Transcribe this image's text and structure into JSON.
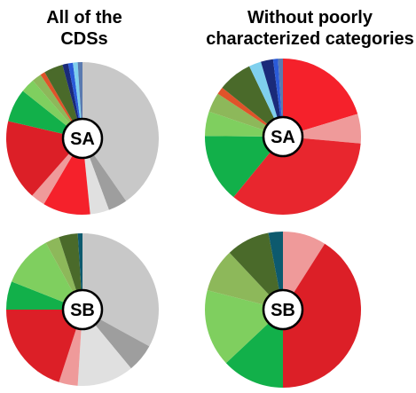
{
  "column_titles": {
    "left": {
      "line1": "All of the",
      "line2": "CDSs"
    },
    "right": {
      "line1": "Without poorly",
      "line2": "characterized categories"
    }
  },
  "colors": {
    "light_gray": "#c8c8c8",
    "mid_gray": "#9e9e9e",
    "pale_gray": "#e0e0e0",
    "bright_red": "#f5212b",
    "pale_pink": "#ef9a9a",
    "dark_red": "#dc1f27",
    "medium_red": "#e8262e",
    "green": "#12b04a",
    "light_green": "#7fcf5f",
    "olive_green": "#8db85a",
    "dark_olive": "#4a6a2a",
    "dark_teal": "#0d5a6e",
    "orange_red": "#e0532a",
    "navy": "#1a2a7a",
    "blue": "#2a5ad8",
    "sky_blue": "#7fd0ee",
    "steel_blue": "#5a7ab0",
    "label_fill": "#ffffff",
    "label_stroke": "#000000"
  },
  "chart_data": [
    {
      "type": "pie",
      "label": "SA",
      "panel": "All of the CDSs",
      "slices": [
        {
          "color": "light_gray",
          "value": 40
        },
        {
          "color": "mid_gray",
          "value": 4
        },
        {
          "color": "pale_gray",
          "value": 4
        },
        {
          "color": "bright_red",
          "value": 10
        },
        {
          "color": "pale_pink",
          "value": 3
        },
        {
          "color": "dark_red",
          "value": 17
        },
        {
          "color": "green",
          "value": 7
        },
        {
          "color": "light_green",
          "value": 3
        },
        {
          "color": "olive_green",
          "value": 2
        },
        {
          "color": "orange_red",
          "value": 1
        },
        {
          "color": "dark_olive",
          "value": 4
        },
        {
          "color": "navy",
          "value": 1.2
        },
        {
          "color": "blue",
          "value": 1
        },
        {
          "color": "sky_blue",
          "value": 1
        },
        {
          "color": "steel_blue",
          "value": 1
        }
      ]
    },
    {
      "type": "pie",
      "label": "SA",
      "panel": "Without poorly characterized categories",
      "slices": [
        {
          "color": "bright_red",
          "value": 20
        },
        {
          "color": "pale_pink",
          "value": 6
        },
        {
          "color": "medium_red",
          "value": 34
        },
        {
          "color": "green",
          "value": 14
        },
        {
          "color": "light_green",
          "value": 5
        },
        {
          "color": "olive_green",
          "value": 4
        },
        {
          "color": "orange_red",
          "value": 1.5
        },
        {
          "color": "dark_olive",
          "value": 7
        },
        {
          "color": "sky_blue",
          "value": 2.5
        },
        {
          "color": "navy",
          "value": 2.5
        },
        {
          "color": "blue",
          "value": 1
        },
        {
          "color": "steel_blue",
          "value": 1
        }
      ]
    },
    {
      "type": "pie",
      "label": "SB",
      "panel": "All of the CDSs",
      "slices": [
        {
          "color": "light_gray",
          "value": 33
        },
        {
          "color": "mid_gray",
          "value": 6
        },
        {
          "color": "pale_gray",
          "value": 12
        },
        {
          "color": "pale_pink",
          "value": 4
        },
        {
          "color": "dark_red",
          "value": 20
        },
        {
          "color": "green",
          "value": 6
        },
        {
          "color": "light_green",
          "value": 11
        },
        {
          "color": "olive_green",
          "value": 3
        },
        {
          "color": "dark_olive",
          "value": 4
        },
        {
          "color": "dark_teal",
          "value": 1
        }
      ]
    },
    {
      "type": "pie",
      "label": "SB",
      "panel": "Without poorly characterized categories",
      "slices": [
        {
          "color": "pale_pink",
          "value": 9
        },
        {
          "color": "dark_red",
          "value": 41
        },
        {
          "color": "green",
          "value": 13
        },
        {
          "color": "light_green",
          "value": 16
        },
        {
          "color": "olive_green",
          "value": 9
        },
        {
          "color": "dark_olive",
          "value": 9
        },
        {
          "color": "dark_teal",
          "value": 3
        }
      ]
    }
  ]
}
